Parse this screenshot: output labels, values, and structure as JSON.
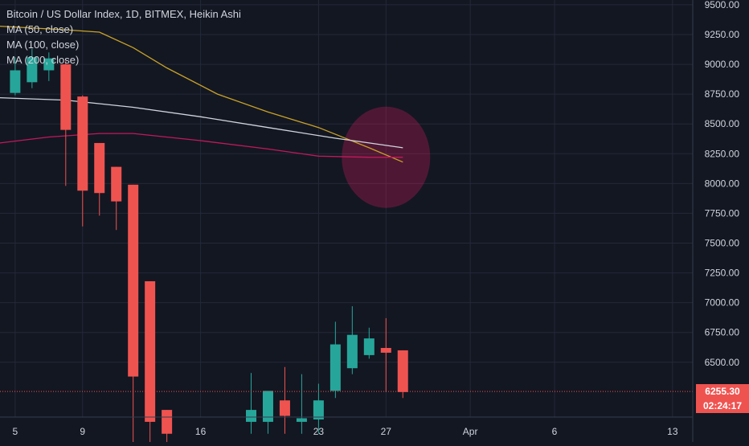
{
  "chart_data": {
    "type": "candlestick",
    "title": "Bitcoin / US Dollar Index, 1D, BITMEX, Heikin Ashi",
    "indicators": [
      {
        "name": "MA (50, close)",
        "color": "#c9a227"
      },
      {
        "name": "MA (100, close)",
        "color": "#d1d4dc"
      },
      {
        "name": "MA (200, close)",
        "color": "#c2185b"
      }
    ],
    "y_axis": {
      "ticks": [
        "9500.00",
        "9250.00",
        "9000.00",
        "8750.00",
        "8500.00",
        "8250.00",
        "8000.00",
        "7750.00",
        "7500.00",
        "7250.00",
        "7000.00",
        "6750.00",
        "6500.00"
      ],
      "ylim": [
        6040,
        9540
      ]
    },
    "x_axis": {
      "ticks": [
        {
          "label": "5",
          "day": 5
        },
        {
          "label": "9",
          "day": 9
        },
        {
          "label": "16",
          "day": 16
        },
        {
          "label": "23",
          "day": 23
        },
        {
          "label": "27",
          "day": 27
        },
        {
          "label": "Apr",
          "day": 32
        },
        {
          "label": "6",
          "day": 37
        },
        {
          "label": "13",
          "day": 44
        }
      ],
      "xlim": [
        4.1,
        45.2
      ]
    },
    "candles": [
      {
        "day": 5,
        "open": 8760,
        "high": 9060,
        "low": 8740,
        "close": 8950
      },
      {
        "day": 6,
        "open": 8850,
        "high": 9130,
        "low": 8800,
        "close": 9060
      },
      {
        "day": 7,
        "open": 8950,
        "high": 9100,
        "low": 8860,
        "close": 9050
      },
      {
        "day": 8,
        "open": 9000,
        "high": 9030,
        "low": 7980,
        "close": 8450
      },
      {
        "day": 9,
        "open": 8730,
        "high": 8740,
        "low": 7640,
        "close": 7940
      },
      {
        "day": 10,
        "open": 8340,
        "high": 8340,
        "low": 7730,
        "close": 7920
      },
      {
        "day": 11,
        "open": 8140,
        "high": 8140,
        "low": 7610,
        "close": 7850
      },
      {
        "day": 12,
        "open": 7990,
        "high": 7990,
        "low": 5800,
        "close": 6380
      },
      {
        "day": 13,
        "open": 7180,
        "high": 7180,
        "low": 5700,
        "close": 6000
      },
      {
        "day": 14,
        "open": 6100,
        "high": 6100,
        "low": 5800,
        "close": 5900
      },
      {
        "day": 19,
        "open": 6000,
        "high": 6410,
        "low": 5900,
        "close": 6100
      },
      {
        "day": 20,
        "open": 6000,
        "high": 6240,
        "low": 5900,
        "close": 6260
      },
      {
        "day": 21,
        "open": 6180,
        "high": 6460,
        "low": 5900,
        "close": 6050
      },
      {
        "day": 22,
        "open": 6000,
        "high": 6400,
        "low": 5900,
        "close": 6030
      },
      {
        "day": 23,
        "open": 6020,
        "high": 6320,
        "low": 5900,
        "close": 6180
      },
      {
        "day": 24,
        "open": 6260,
        "high": 6840,
        "low": 6200,
        "close": 6650
      },
      {
        "day": 25,
        "open": 6450,
        "high": 6970,
        "low": 6400,
        "close": 6730
      },
      {
        "day": 26,
        "open": 6560,
        "high": 6790,
        "low": 6530,
        "close": 6700
      },
      {
        "day": 27,
        "open": 6620,
        "high": 6870,
        "low": 6250,
        "close": 6580
      },
      {
        "day": 28,
        "open": 6600,
        "high": 6600,
        "low": 6200,
        "close": 6250
      }
    ],
    "ma_lines": [
      {
        "name": "MA (50, close)",
        "color": "#c9a227",
        "points": [
          [
            4.1,
            9320
          ],
          [
            8,
            9290
          ],
          [
            10,
            9270
          ],
          [
            12,
            9140
          ],
          [
            14,
            8970
          ],
          [
            17,
            8750
          ],
          [
            20,
            8600
          ],
          [
            23,
            8470
          ],
          [
            26,
            8300
          ],
          [
            28.0,
            8180
          ]
        ]
      },
      {
        "name": "MA (100, close)",
        "color": "#d1d4dc",
        "points": [
          [
            4.1,
            8720
          ],
          [
            8,
            8700
          ],
          [
            12,
            8640
          ],
          [
            16,
            8560
          ],
          [
            20,
            8470
          ],
          [
            24,
            8380
          ],
          [
            26,
            8340
          ],
          [
            28.0,
            8300
          ]
        ]
      },
      {
        "name": "MA (200, close)",
        "color": "#c2185b",
        "points": [
          [
            4.1,
            8340
          ],
          [
            7,
            8390
          ],
          [
            10,
            8420
          ],
          [
            12,
            8420
          ],
          [
            16,
            8360
          ],
          [
            20,
            8290
          ],
          [
            23,
            8230
          ],
          [
            26,
            8220
          ],
          [
            28.0,
            8220
          ]
        ]
      }
    ],
    "last_price": {
      "value": 6255.3,
      "label": "6255.30",
      "countdown": "02:24:17",
      "color": "#ef5350"
    },
    "highlight": {
      "day": 27,
      "value": 8220,
      "color": "rgba(233,30,99,0.28)"
    },
    "grid": true,
    "colors": {
      "up": "#26a69a",
      "down": "#ef5350",
      "axis_text": "#d1d4dc",
      "grid": "#242938"
    }
  }
}
